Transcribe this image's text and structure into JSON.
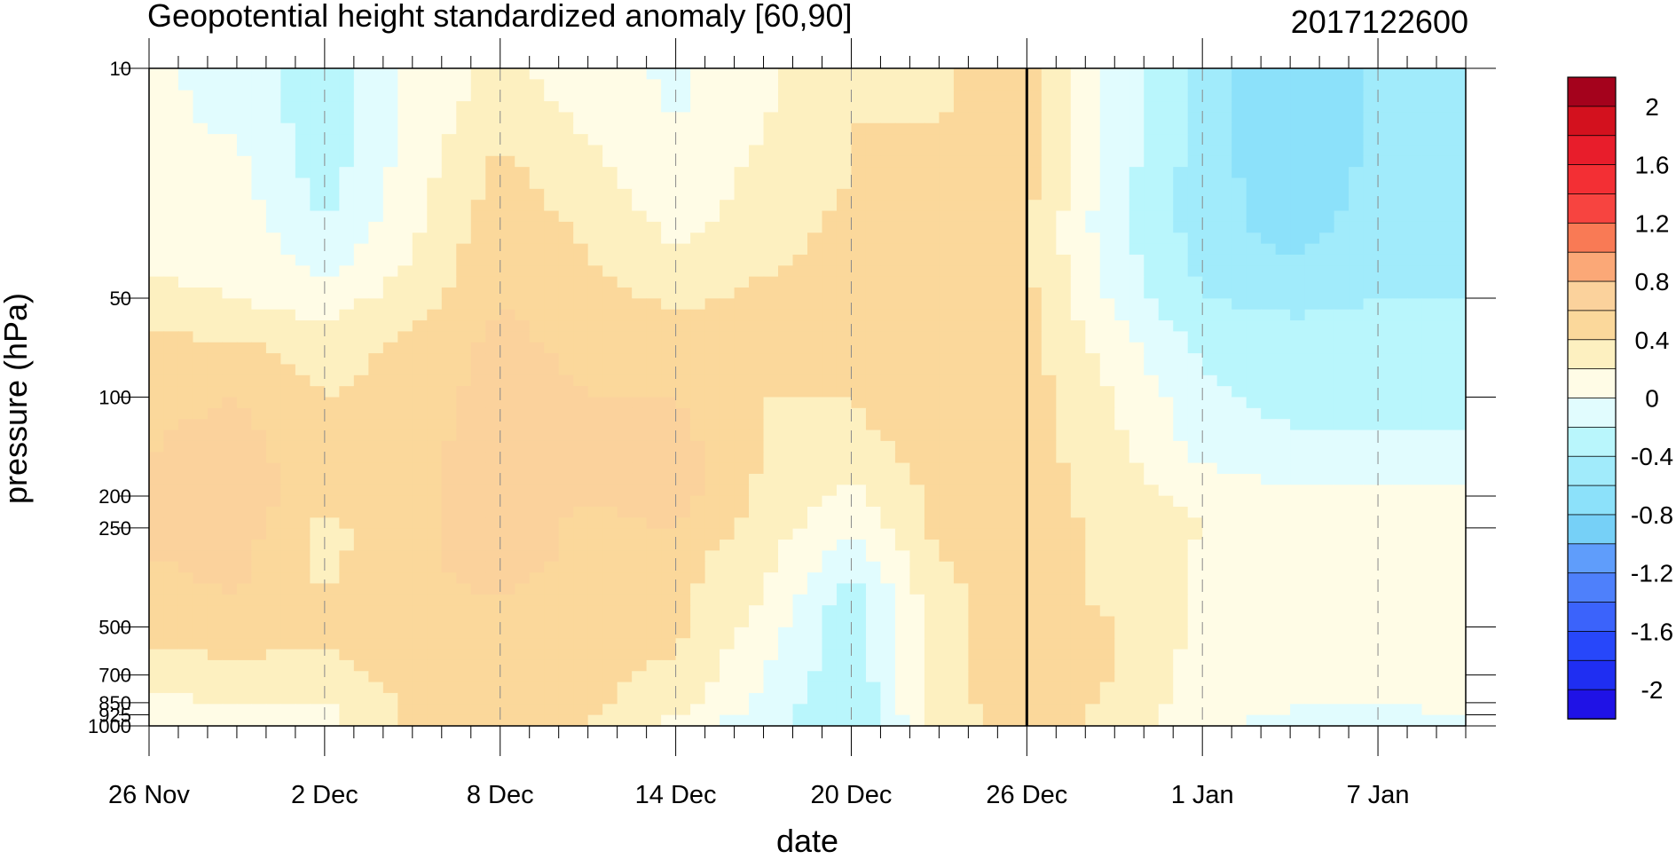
{
  "chart_data": {
    "type": "heatmap",
    "subtype": "filled-contour time-pressure cross-section",
    "title": "Geopotential height standardized anomaly [60,90]",
    "run_label": "2017122600",
    "xlabel": "date",
    "ylabel": "pressure (hPa)",
    "x_tick_labels": [
      "26 Nov",
      "2 Dec",
      "8 Dec",
      "14 Dec",
      "20 Dec",
      "26 Dec",
      "1 Jan",
      "7 Jan"
    ],
    "x_tick_days": [
      0,
      6,
      12,
      18,
      24,
      30,
      36,
      42
    ],
    "x_range_days": [
      0,
      45
    ],
    "x_axis_start": "26 Nov",
    "y_tick_labels": [
      "10",
      "50",
      "100",
      "200",
      "250",
      "500",
      "700",
      "850",
      "925",
      "1000"
    ],
    "y_tick_values": [
      10,
      50,
      100,
      200,
      250,
      500,
      700,
      850,
      925,
      1000
    ],
    "y_range": [
      10,
      1000
    ],
    "y_scale": "log",
    "y_inverted": true,
    "forecast_start_line_day": 30,
    "grid": "dashed vertical lines at x ticks",
    "legend_position": "right",
    "colorbar_labels": [
      "2",
      "1.6",
      "1.2",
      "0.8",
      "0.4",
      "0",
      "-0.4",
      "-0.8",
      "-1.2",
      "-1.6",
      "-2"
    ],
    "levels": [
      -2.2,
      -2.0,
      -1.8,
      -1.6,
      -1.4,
      -1.2,
      -1.0,
      -0.8,
      -0.6,
      -0.4,
      -0.2,
      0,
      0.2,
      0.4,
      0.6,
      0.8,
      1.0,
      1.2,
      1.4,
      1.6,
      1.8,
      2.0,
      2.2
    ],
    "colors": [
      "#1f12e6",
      "#1f2ef2",
      "#2747fa",
      "#3b63fb",
      "#4e80fb",
      "#5f9dfb",
      "#76d0f7",
      "#8ce1fa",
      "#a1ebfb",
      "#b9f6fc",
      "#e1fcfe",
      "#fffce6",
      "#fdf0c0",
      "#fbd89b",
      "#fbd29c",
      "#fba877",
      "#f97a55",
      "#f74440",
      "#f32f34",
      "#e81d2b",
      "#d3111e",
      "#a4021c"
    ],
    "field_days": [
      0,
      3,
      6,
      9,
      12,
      15,
      18,
      21,
      24,
      27,
      30,
      33,
      36,
      39,
      42,
      45
    ],
    "field_pressure_hPa": [
      10,
      20,
      30,
      50,
      70,
      100,
      150,
      200,
      250,
      300,
      400,
      500,
      700,
      850,
      925,
      1000
    ],
    "field_values": [
      [
        0.05,
        -0.1,
        -0.35,
        0.05,
        0.25,
        0.1,
        -0.05,
        0.15,
        0.4,
        0.35,
        0.55,
        -0.1,
        -0.5,
        -0.75,
        -0.55,
        -0.45
      ],
      [
        0.05,
        0.05,
        -0.3,
        0.1,
        0.45,
        0.25,
        0.05,
        0.25,
        0.4,
        0.45,
        0.5,
        -0.1,
        -0.5,
        -0.75,
        -0.55,
        -0.45
      ],
      [
        0.1,
        0.1,
        -0.2,
        0.15,
        0.55,
        0.35,
        0.15,
        0.3,
        0.45,
        0.5,
        0.4,
        -0.15,
        -0.5,
        -0.7,
        -0.5,
        -0.45
      ],
      [
        0.25,
        0.2,
        0.1,
        0.3,
        0.6,
        0.5,
        0.35,
        0.45,
        0.55,
        0.6,
        0.45,
        -0.05,
        -0.4,
        -0.45,
        -0.4,
        -0.4
      ],
      [
        0.45,
        0.45,
        0.3,
        0.45,
        0.65,
        0.55,
        0.55,
        0.45,
        0.45,
        0.55,
        0.45,
        0.1,
        -0.25,
        -0.3,
        -0.3,
        -0.3
      ],
      [
        0.55,
        0.6,
        0.4,
        0.5,
        0.7,
        0.6,
        0.6,
        0.4,
        0.4,
        0.55,
        0.5,
        0.2,
        -0.15,
        -0.25,
        -0.25,
        -0.25
      ],
      [
        0.6,
        0.7,
        0.45,
        0.5,
        0.75,
        0.6,
        0.7,
        0.4,
        0.3,
        0.5,
        0.5,
        0.25,
        -0.05,
        -0.15,
        -0.15,
        -0.15
      ],
      [
        0.65,
        0.75,
        0.45,
        0.5,
        0.75,
        0.6,
        0.7,
        0.35,
        0.15,
        0.45,
        0.5,
        0.3,
        0.15,
        0.05,
        0.05,
        0.05
      ],
      [
        0.6,
        0.7,
        0.35,
        0.55,
        0.7,
        0.55,
        0.6,
        0.3,
        0.05,
        0.45,
        0.5,
        0.35,
        0.2,
        0.05,
        0.05,
        0.05
      ],
      [
        0.6,
        0.65,
        0.35,
        0.55,
        0.7,
        0.55,
        0.5,
        0.25,
        -0.1,
        0.4,
        0.5,
        0.35,
        0.15,
        0.05,
        0.05,
        0.05
      ],
      [
        0.55,
        0.6,
        0.4,
        0.55,
        0.6,
        0.5,
        0.45,
        0.2,
        -0.3,
        0.35,
        0.5,
        0.35,
        0.15,
        0.05,
        0.05,
        0.05
      ],
      [
        0.45,
        0.5,
        0.45,
        0.55,
        0.55,
        0.5,
        0.45,
        0.1,
        -0.35,
        0.35,
        0.55,
        0.4,
        0.15,
        0.05,
        0.05,
        0.05
      ],
      [
        0.3,
        0.35,
        0.3,
        0.5,
        0.5,
        0.45,
        0.35,
        0.0,
        -0.35,
        0.3,
        0.55,
        0.4,
        0.1,
        0.05,
        0.05,
        0.05
      ],
      [
        0.15,
        0.2,
        0.2,
        0.45,
        0.45,
        0.45,
        0.3,
        -0.05,
        -0.4,
        0.3,
        0.55,
        0.35,
        0.1,
        0.05,
        0.0,
        0.05
      ],
      [
        0.05,
        0.15,
        0.15,
        0.45,
        0.45,
        0.4,
        0.2,
        -0.1,
        -0.4,
        0.3,
        0.5,
        0.35,
        0.05,
        -0.05,
        -0.05,
        0.0
      ],
      [
        -0.05,
        0.1,
        0.1,
        0.45,
        0.45,
        0.4,
        0.1,
        -0.15,
        -0.45,
        0.3,
        0.45,
        0.35,
        0.05,
        -0.05,
        -0.05,
        0.0
      ]
    ]
  }
}
